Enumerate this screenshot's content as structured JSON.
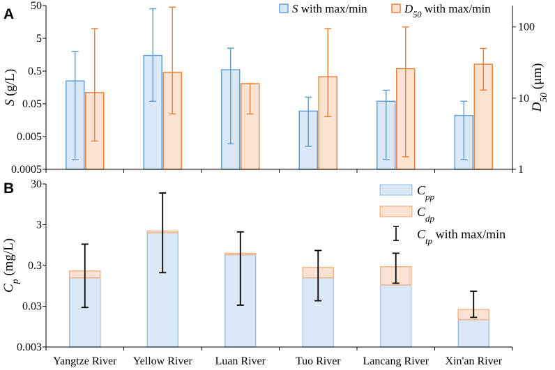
{
  "colors": {
    "s_fill": "#dae8f6",
    "s_edge": "#5b9bd5",
    "d50_fill": "#fbe2d3",
    "d50_edge": "#ed7d31",
    "cpp_fill": "#dae8f6",
    "cpp_edge": "#9dc3e6",
    "cdp_fill": "#fbe2d3",
    "cdp_edge": "#f4b183",
    "ctp_bar": "#000000",
    "axis": "#000000"
  },
  "chart_data": [
    {
      "type": "bar",
      "panel_label": "A",
      "categories": [
        "Yangtze River",
        "Yellow River",
        "Luan River",
        "Tuo River",
        "Lancang River",
        "Xin'an River"
      ],
      "y_scale": "log",
      "ylabel_main": "S",
      "ylabel_unit": "(g/L)",
      "ylim": [
        0.0005,
        50
      ],
      "yticks": [
        0.0005,
        0.005,
        0.05,
        0.5,
        5,
        50
      ],
      "ytick_labels": [
        "0.0005",
        "0.005",
        "0.05",
        "0.5",
        "5",
        "50"
      ],
      "y2_scale": "log",
      "y2label_main": "D",
      "y2label_sub": "50",
      "y2label_unit": "(μm)",
      "y2lim": [
        1,
        200
      ],
      "y2ticks": [
        1,
        10,
        100
      ],
      "y2tick_labels": [
        "1",
        "10",
        "100"
      ],
      "legend": [
        {
          "main": "S",
          "sub": "",
          "suffix": " with max/min"
        },
        {
          "main": "D",
          "sub": "50",
          "suffix": " with max/min"
        }
      ],
      "series": [
        {
          "name": "S",
          "axis": "left",
          "values": [
            0.25,
            1.5,
            0.55,
            0.03,
            0.06,
            0.022
          ],
          "max": [
            2.0,
            40,
            2.5,
            0.08,
            0.13,
            0.06
          ],
          "min": [
            0.001,
            0.06,
            0.003,
            0.0025,
            0.001,
            0.001
          ]
        },
        {
          "name": "D50",
          "axis": "right",
          "values": [
            12,
            23,
            16,
            20,
            26,
            30
          ],
          "max": [
            95,
            190,
            16,
            95,
            100,
            50
          ],
          "min": [
            2.5,
            6,
            6,
            5.5,
            1.5,
            13
          ]
        }
      ]
    },
    {
      "type": "stacked-bar",
      "panel_label": "B",
      "categories": [
        "Yangtze River",
        "Yellow River",
        "Luan River",
        "Tuo River",
        "Lancang River",
        "Xin'an River"
      ],
      "y_scale": "log",
      "ylabel_main": "C",
      "ylabel_sub": "p",
      "ylabel_unit": "(mg/L)",
      "ylim": [
        0.003,
        30
      ],
      "yticks": [
        0.003,
        0.03,
        0.3,
        3,
        30
      ],
      "ytick_labels": [
        "0.003",
        "0.03",
        "0.3",
        "3",
        "30"
      ],
      "legend": [
        {
          "main": "C",
          "sub": "pp",
          "suffix": ""
        },
        {
          "main": "C",
          "sub": "dp",
          "suffix": ""
        },
        {
          "main": "C",
          "sub": "tp",
          "suffix": " with max/min"
        }
      ],
      "series": [
        {
          "name": "Cpp",
          "values": [
            0.15,
            1.9,
            0.55,
            0.15,
            0.1,
            0.014
          ]
        },
        {
          "name": "Cdp",
          "values": [
            0.07,
            0.2,
            0.05,
            0.12,
            0.18,
            0.011
          ]
        }
      ],
      "ctp": {
        "center": [
          0.2,
          2.1,
          0.6,
          0.27,
          0.27,
          0.025
        ],
        "max": [
          1.0,
          18,
          2.0,
          0.7,
          0.6,
          0.07
        ],
        "min": [
          0.028,
          0.2,
          0.032,
          0.041,
          0.11,
          0.016
        ]
      }
    }
  ]
}
